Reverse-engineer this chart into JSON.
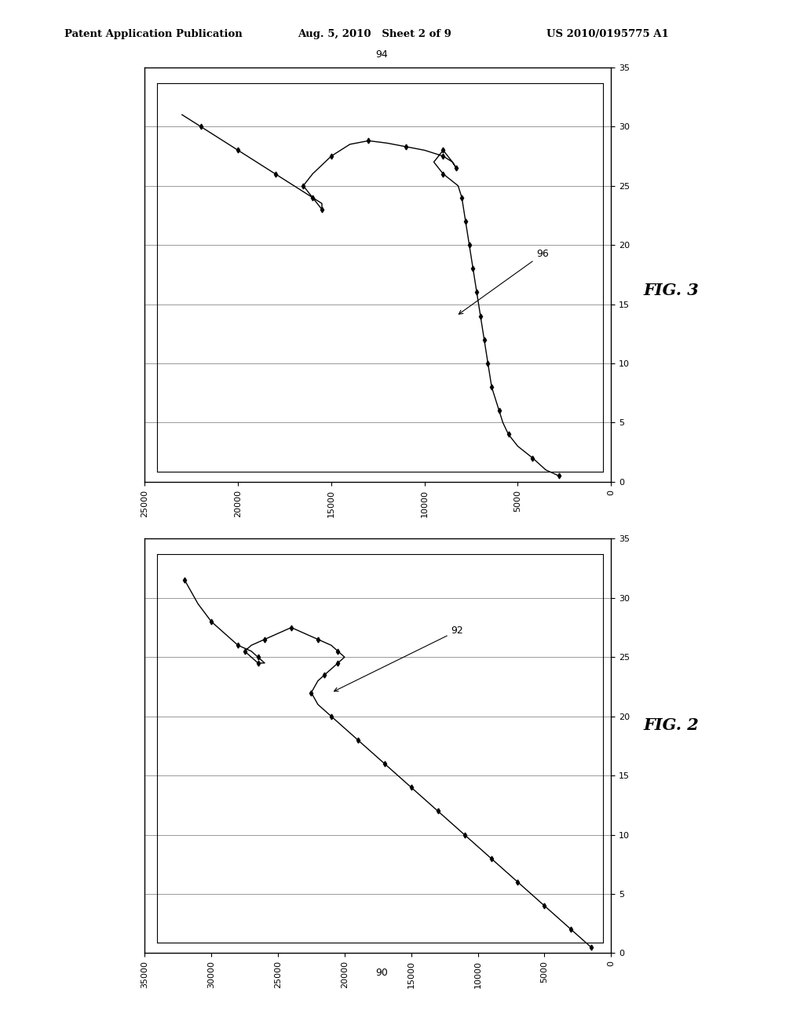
{
  "header_left": "Patent Application Publication",
  "header_center": "Aug. 5, 2010   Sheet 2 of 9",
  "header_right": "US 2010/0195775 A1",
  "fig2_label": "FIG. 2",
  "fig3_label": "FIG. 3",
  "fig2_ref": "90",
  "fig2_curve_ref": "92",
  "fig3_ref": "94",
  "fig3_curve_ref": "96",
  "fig2_xlim": [
    0,
    35000
  ],
  "fig2_ylim": [
    0,
    35
  ],
  "fig2_xticks": [
    0,
    5000,
    10000,
    15000,
    20000,
    25000,
    30000,
    35000
  ],
  "fig2_yticks": [
    0,
    5,
    10,
    15,
    20,
    25,
    30,
    35
  ],
  "fig3_xlim": [
    0,
    25000
  ],
  "fig3_ylim": [
    0,
    35
  ],
  "fig3_xticks": [
    0,
    5000,
    10000,
    15000,
    20000,
    25000
  ],
  "fig3_yticks": [
    0,
    5,
    10,
    15,
    20,
    25,
    30,
    35
  ],
  "background_color": "#ffffff",
  "line_color": "#000000",
  "grid_color": "#999999",
  "fig2_x": [
    500,
    1500,
    3000,
    5000,
    7000,
    9000,
    11000,
    13000,
    15000,
    17000,
    18000,
    18500,
    19000,
    19500,
    20000,
    20500,
    21000,
    21500,
    22000,
    22500,
    23000,
    23500,
    24000,
    24500,
    25000,
    25500,
    26000,
    26500,
    27000,
    27500,
    28000,
    28500,
    29000,
    29500,
    30000,
    31000,
    32000,
    33000
  ],
  "fig2_y": [
    0.5,
    1,
    2,
    3,
    4,
    5,
    6,
    7,
    8,
    9,
    10,
    11,
    12,
    13,
    14,
    15,
    16,
    17,
    18,
    19,
    20,
    21,
    22,
    23,
    24,
    24.5,
    25,
    25.5,
    26,
    26.5,
    27,
    27.5,
    28,
    28.5,
    29,
    30,
    31,
    32
  ],
  "fig3_x": [
    500,
    1500,
    2500,
    3500,
    4500,
    5000,
    5500,
    6000,
    6500,
    7000,
    7500,
    8000,
    8500,
    9000,
    9500,
    10000,
    10500,
    11000,
    11500,
    12000,
    12500,
    13000,
    13500,
    14000,
    14500,
    15000,
    15500,
    16000,
    16500,
    17000,
    17500,
    18000,
    18500,
    19000,
    19500,
    20000,
    20500,
    21000,
    22000,
    23000,
    24000,
    25000
  ],
  "fig3_y": [
    0.5,
    1,
    2,
    3,
    4,
    5,
    6,
    7,
    8,
    9,
    10,
    11,
    12,
    13,
    14,
    15,
    16,
    17,
    18,
    19,
    20,
    21,
    22,
    22.5,
    23,
    23.5,
    24,
    23.5,
    23,
    22.5,
    22,
    22,
    22,
    22,
    22,
    22,
    22,
    22,
    22.5,
    23,
    24,
    25
  ]
}
